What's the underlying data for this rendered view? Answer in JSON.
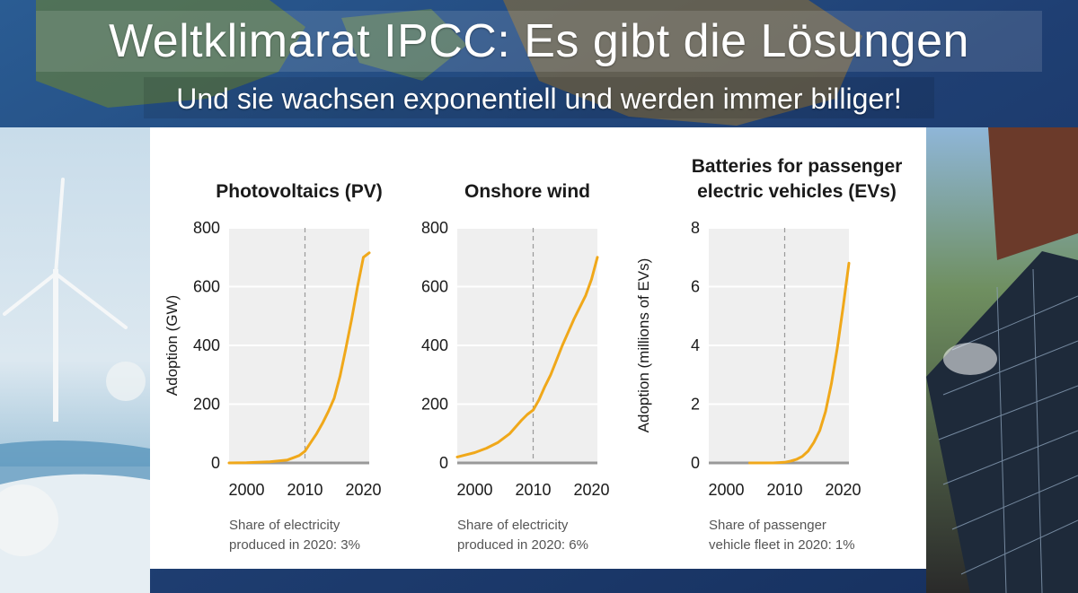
{
  "header": {
    "title": "Weltklimarat IPCC: Es gibt die Lösungen",
    "subtitle": "Und sie wachsen exponentiell und werden immer billiger!"
  },
  "colors": {
    "line": "#f0a81a",
    "plot_bg": "#efefef",
    "grid": "#ffffff",
    "axis": "#999999"
  },
  "chart_data": [
    {
      "type": "line",
      "title": "Photovoltaics (PV)",
      "title_lines": [
        "Photovoltaics (PV)"
      ],
      "ylabel": "Adoption (GW)",
      "xlabel": "",
      "xlim": [
        1997,
        2021
      ],
      "ylim": [
        0,
        800
      ],
      "yticks": [
        0,
        200,
        400,
        600,
        800
      ],
      "xticks": [
        2000,
        2010,
        2020
      ],
      "marker_year": 2010,
      "x": [
        1997,
        2000,
        2004,
        2007,
        2009,
        2010,
        2011,
        2012,
        2013,
        2014,
        2015,
        2016,
        2017,
        2018,
        2019,
        2020,
        2021
      ],
      "y": [
        0,
        1,
        4,
        10,
        25,
        40,
        70,
        100,
        135,
        175,
        220,
        295,
        390,
        490,
        600,
        700,
        715
      ],
      "note": [
        "Share of electricity",
        "produced in 2020: 3%"
      ]
    },
    {
      "type": "line",
      "title": "Onshore wind",
      "title_lines": [
        "Onshore wind"
      ],
      "ylabel": "",
      "xlabel": "",
      "xlim": [
        1997,
        2021
      ],
      "ylim": [
        0,
        800
      ],
      "yticks": [
        0,
        200,
        400,
        600,
        800
      ],
      "xticks": [
        2000,
        2010,
        2020
      ],
      "marker_year": 2010,
      "x": [
        1997,
        2000,
        2002,
        2004,
        2006,
        2008,
        2009,
        2010,
        2011,
        2012,
        2013,
        2014,
        2015,
        2016,
        2017,
        2018,
        2019,
        2020,
        2021
      ],
      "y": [
        20,
        35,
        50,
        70,
        100,
        145,
        165,
        180,
        215,
        260,
        300,
        350,
        400,
        445,
        490,
        530,
        570,
        625,
        700
      ],
      "note": [
        "Share of electricity",
        "produced in 2020: 6%"
      ]
    },
    {
      "type": "line",
      "title": "Batteries for passenger electric vehicles (EVs)",
      "title_lines": [
        "Batteries for passenger",
        "electric vehicles (EVs)"
      ],
      "ylabel": "Adoption (millions of EVs)",
      "xlabel": "",
      "xlim": [
        1997,
        2021
      ],
      "ylim": [
        0,
        8
      ],
      "yticks": [
        0,
        2,
        4,
        6,
        8
      ],
      "xticks": [
        2000,
        2010,
        2020
      ],
      "marker_year": 2010,
      "x": [
        2004,
        2008,
        2010,
        2011,
        2012,
        2013,
        2014,
        2015,
        2016,
        2017,
        2018,
        2019,
        2020,
        2021
      ],
      "y": [
        0,
        0,
        0.02,
        0.06,
        0.12,
        0.22,
        0.4,
        0.7,
        1.1,
        1.75,
        2.7,
        3.9,
        5.3,
        6.8
      ],
      "note": [
        "Share of passenger",
        "vehicle fleet in 2020: 1%"
      ]
    }
  ]
}
